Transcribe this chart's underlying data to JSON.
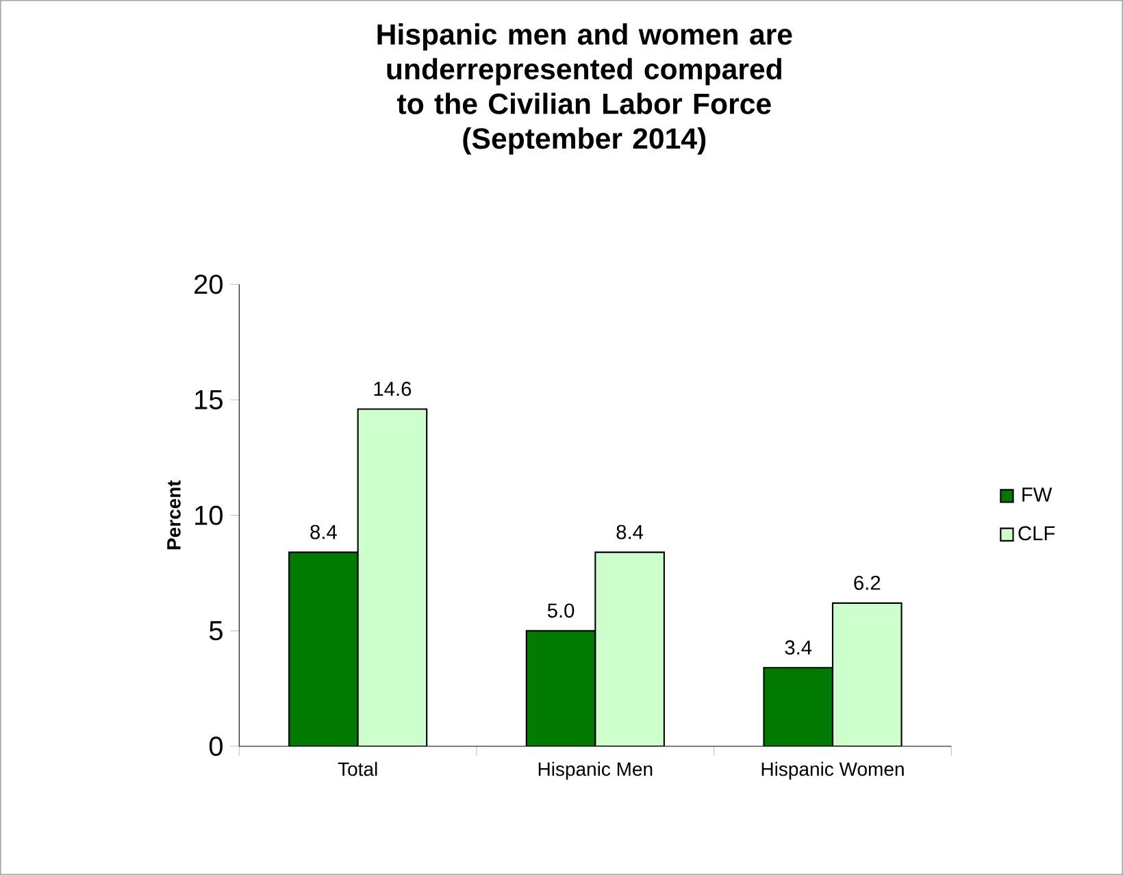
{
  "chart_data": {
    "type": "bar",
    "title": "Hispanic men and women are underrepresented compared to the Civilian Labor Force",
    "subtitle": "(September 2014)",
    "ylabel": "Percent",
    "categories": [
      "Total",
      "Hispanic Men",
      "Hispanic Women"
    ],
    "series": [
      {
        "name": "FW",
        "color": "#007a00",
        "values": [
          8.4,
          5.0,
          3.4
        ],
        "value_labels": [
          "8.4",
          "5.0",
          "3.4"
        ]
      },
      {
        "name": "CLF",
        "color": "#ccffcc",
        "values": [
          14.6,
          8.4,
          6.2
        ],
        "value_labels": [
          "14.6",
          "8.4",
          "6.2"
        ]
      }
    ],
    "ylim": [
      0,
      20
    ],
    "yticks": [
      0,
      5,
      10,
      15,
      20
    ],
    "grid": false,
    "legend": "right"
  }
}
